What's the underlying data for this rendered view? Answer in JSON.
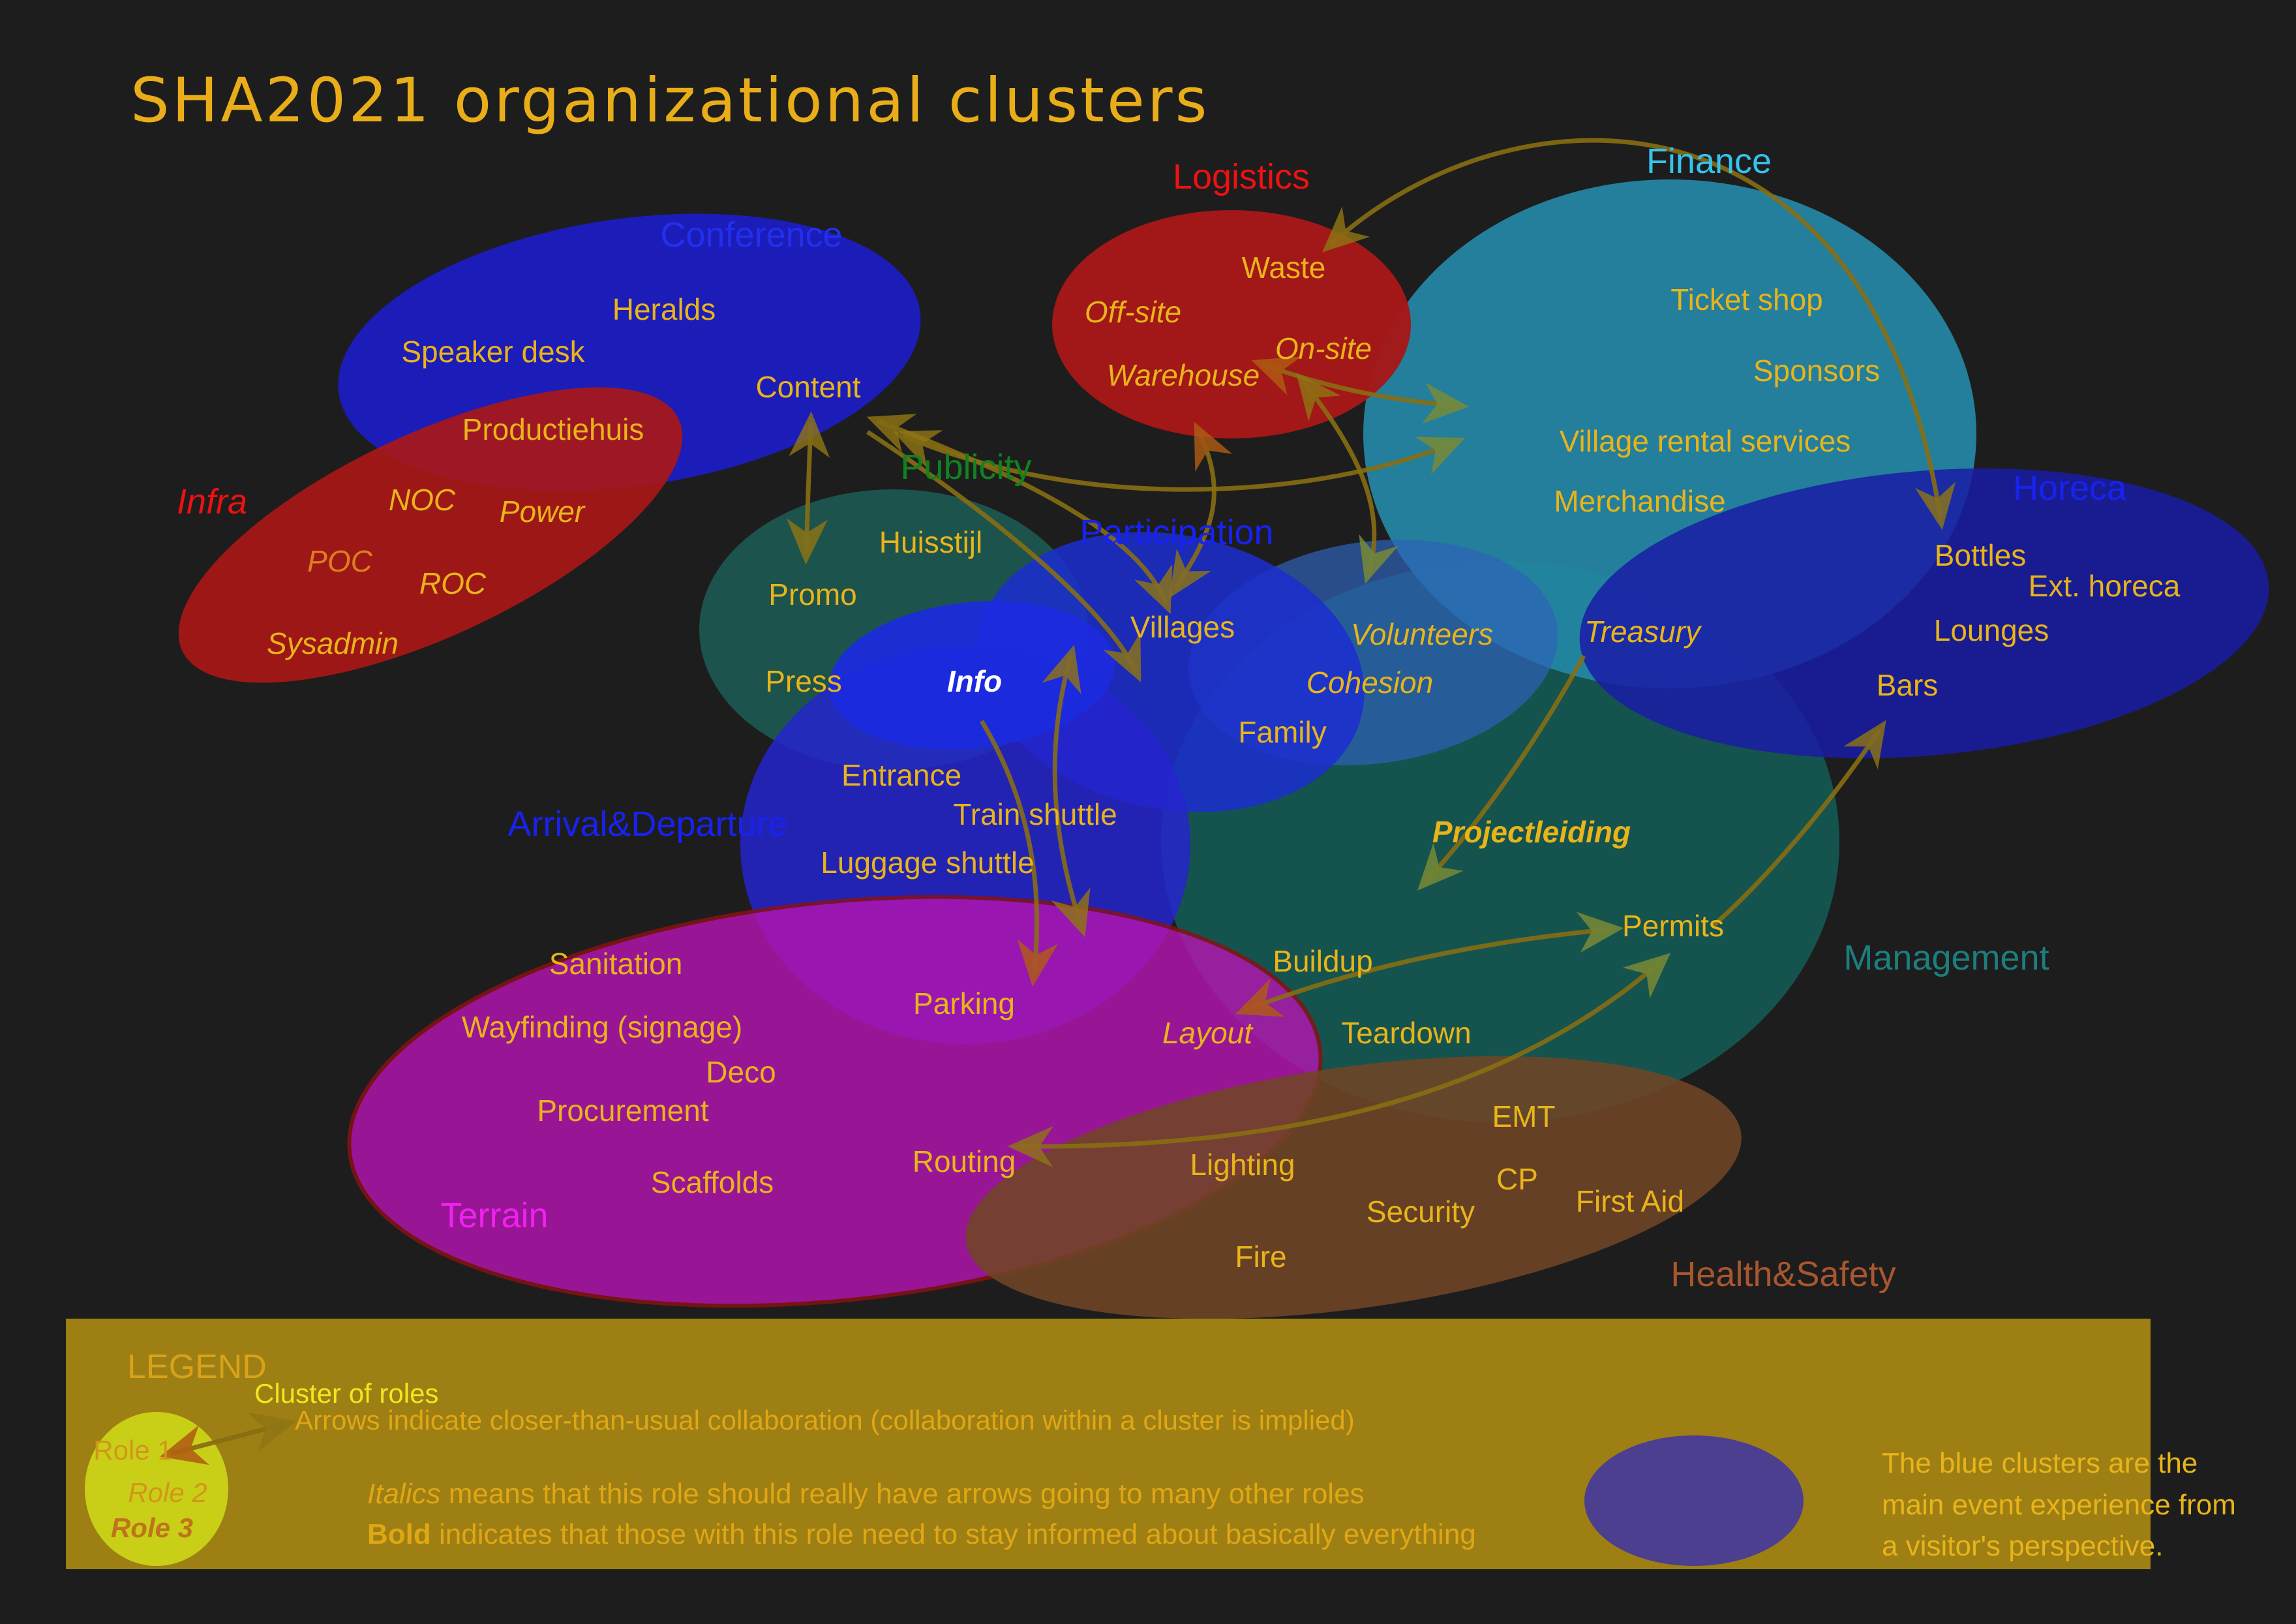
{
  "title": "SHA2021 organizational clusters",
  "colors": {
    "background": "#1d1d1d",
    "title": "#e8ad18",
    "role_label": "#e8b41a",
    "arrow": "#8a6f12",
    "arrow_head_olive": "#8f7514",
    "arrow_head_orange": "#b05c12",
    "arrow_head_green": "#7d8c33"
  },
  "clusters": [
    {
      "id": "conference",
      "title": "Conference",
      "title_color": "#2230ee",
      "fill": "#1c1cbe",
      "roles": [
        {
          "label": "Heralds"
        },
        {
          "label": "Speaker desk"
        },
        {
          "label": "Content"
        },
        {
          "label": "Productiehuis"
        }
      ]
    },
    {
      "id": "logistics",
      "title": "Logistics",
      "title_color": "#ee1111",
      "fill": "#a81717",
      "roles": [
        {
          "label": "Waste"
        },
        {
          "label": "Off-site",
          "style": "italic"
        },
        {
          "label": "On-site",
          "style": "italic"
        },
        {
          "label": "Warehouse",
          "style": "italic"
        }
      ]
    },
    {
      "id": "finance",
      "title": "Finance",
      "title_color": "#35c3ee",
      "fill": "#2486a5",
      "roles": [
        {
          "label": "Ticket shop"
        },
        {
          "label": "Sponsors"
        },
        {
          "label": "Village rental services"
        },
        {
          "label": "Merchandise"
        },
        {
          "label": "Treasury",
          "style": "italic"
        }
      ]
    },
    {
      "id": "infra",
      "title": "Infra",
      "title_style": "italic",
      "title_color": "#ee1111",
      "fill": "#a81717",
      "roles": [
        {
          "label": "NOC",
          "style": "italic"
        },
        {
          "label": "Power",
          "style": "italic"
        },
        {
          "label": "POC",
          "style": "italic",
          "color": "#df7d1f"
        },
        {
          "label": "ROC",
          "style": "italic"
        },
        {
          "label": "Sysadmin",
          "style": "italic"
        }
      ]
    },
    {
      "id": "publicity",
      "title": "Publicity",
      "title_color": "#11821f",
      "fill": "#1d5a52",
      "roles": [
        {
          "label": "Huisstijl"
        },
        {
          "label": "Promo"
        },
        {
          "label": "Press"
        },
        {
          "label": "Info",
          "style": "bold-italic",
          "color": "#ffffff"
        }
      ]
    },
    {
      "id": "participation",
      "title": "Participation",
      "title_color": "#1822f0",
      "fill": "#1b2ed0",
      "roles": [
        {
          "label": "Villages"
        },
        {
          "label": "Volunteers",
          "style": "italic"
        },
        {
          "label": "Cohesion",
          "style": "italic"
        },
        {
          "label": "Family"
        }
      ]
    },
    {
      "id": "horeca",
      "title": "Horeca",
      "title_color": "#1822f0",
      "fill": "#191ca6",
      "roles": [
        {
          "label": "Bottles"
        },
        {
          "label": "Ext. horeca"
        },
        {
          "label": "Lounges"
        },
        {
          "label": "Bars"
        }
      ]
    },
    {
      "id": "arrival",
      "title": "Arrival&Departure",
      "title_color": "#1822f0",
      "fill": "#2424ce",
      "roles": [
        {
          "label": "Entrance"
        },
        {
          "label": "Train shuttle"
        },
        {
          "label": "Luggage shuttle"
        },
        {
          "label": "Parking"
        }
      ]
    },
    {
      "id": "management",
      "title": "Management",
      "title_color": "#1d7e7e",
      "fill": "#155651",
      "roles": [
        {
          "label": "Projectleiding",
          "style": "bold-italic"
        },
        {
          "label": "Permits"
        },
        {
          "label": "Buildup"
        },
        {
          "label": "Teardown"
        }
      ]
    },
    {
      "id": "terrain",
      "title": "Terrain",
      "title_color": "#ee22ee",
      "fill": "#b315b0",
      "stroke": "#8a1111",
      "roles": [
        {
          "label": "Sanitation"
        },
        {
          "label": "Wayfinding (signage)"
        },
        {
          "label": "Deco"
        },
        {
          "label": "Procurement"
        },
        {
          "label": "Scaffolds"
        },
        {
          "label": "Layout",
          "style": "italic"
        },
        {
          "label": "Routing"
        },
        {
          "label": "Lighting"
        }
      ]
    },
    {
      "id": "healthsafety",
      "title": "Health&Safety",
      "title_color": "#a8562f",
      "fill": "#6f4526",
      "roles": [
        {
          "label": "EMT"
        },
        {
          "label": "CP"
        },
        {
          "label": "First Aid"
        },
        {
          "label": "Security"
        },
        {
          "label": "Fire"
        }
      ]
    }
  ],
  "extra_shapes": {
    "volunteers_blob_fill": "#2e62b8",
    "info_blob_fill": "#1c2ae0"
  },
  "arrows": [
    {
      "from": "Waste",
      "to": "Bottles"
    },
    {
      "from": "Content",
      "to": "Promo"
    },
    {
      "from": "Content",
      "to": "Villages"
    },
    {
      "from": "Content",
      "to": "Village rental services"
    },
    {
      "from": "On-site",
      "to": "Village rental services"
    },
    {
      "from": "On-site",
      "to": "Volunteers"
    },
    {
      "from": "Warehouse",
      "to": "Villages"
    },
    {
      "from": "Villages",
      "to": "Layout"
    },
    {
      "from": "Content",
      "to": "Family"
    },
    {
      "from": "Info",
      "to": "Layout"
    },
    {
      "from": "Layout",
      "to": "Permits"
    },
    {
      "from": "Routing",
      "to": "Permits"
    },
    {
      "from": "Treasury",
      "to": "Permits"
    },
    {
      "from": "Bars",
      "to": "Permits"
    }
  ],
  "legend": {
    "heading": "LEGEND",
    "cluster_label": "Cluster of roles",
    "arrows_note": "Arrows indicate closer-than-usual collaboration (collaboration within a cluster is implied)",
    "italics_word": "Italics",
    "italics_rest": " means that this role should really have arrows going to many other roles",
    "bold_word": "Bold",
    "bold_rest": " indicates that those with this role need to stay informed about basically everything",
    "blue_note_lines": [
      "The blue clusters are the",
      "main event experience from",
      "a visitor's perspective."
    ],
    "roles": [
      "Role 1",
      "Role 2",
      "Role 3"
    ],
    "bg": "#9d7f14",
    "heading_color": "#d9a21a",
    "cluster_label_color": "#f2e71d",
    "text_color": "#dfa714",
    "ellipse_fill": "#c9cf17",
    "blue_ellipse_fill": "#4c3f90",
    "role_colors": [
      "#d2961c",
      "#d2961c",
      "#bf731b"
    ]
  }
}
